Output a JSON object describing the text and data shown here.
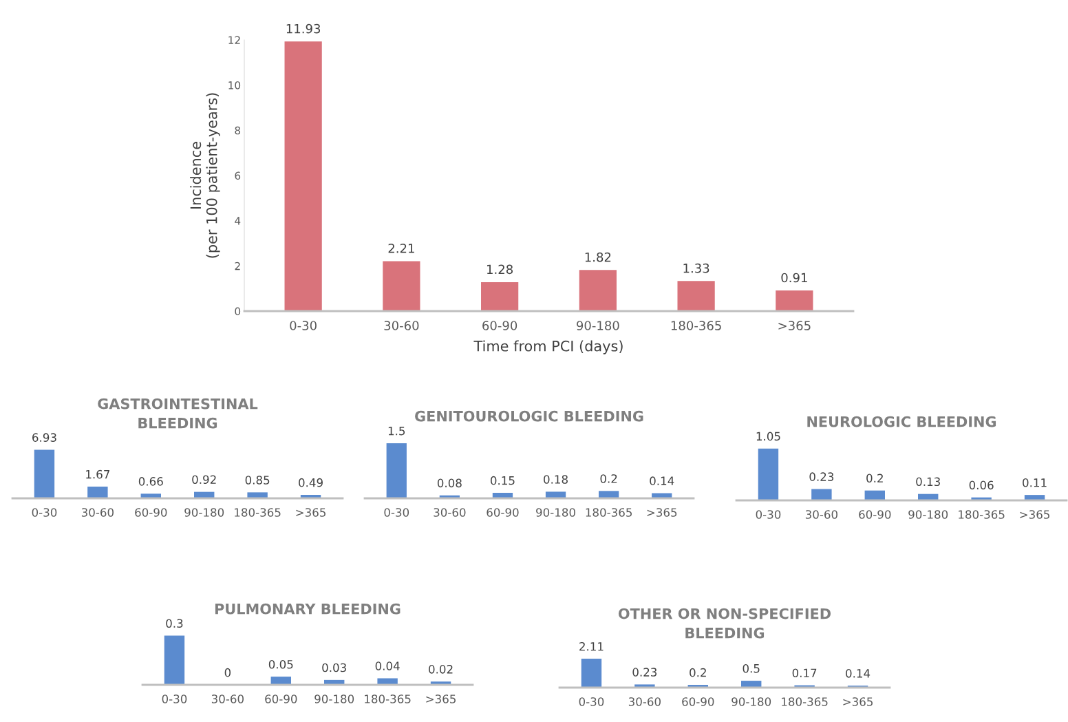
{
  "chart_data": [
    {
      "type": "bar",
      "xlabel": "Time from PCI (days)",
      "ylabel": "Incidence\n(per 100 patient-years)",
      "categories": [
        "0-30",
        "30-60",
        "60-90",
        "90-180",
        "180-365",
        ">365"
      ],
      "values": [
        11.93,
        2.21,
        1.28,
        1.82,
        1.33,
        0.91
      ],
      "color": "#d9737b",
      "ylim": [
        0,
        12
      ],
      "yticks": [
        0,
        2,
        4,
        6,
        8,
        10,
        12
      ],
      "data_labels": true,
      "grid": false
    },
    {
      "type": "bar",
      "title": "GASTROINTESTINAL\nBLEEDING",
      "categories": [
        "0-30",
        "30-60",
        "60-90",
        "90-180",
        "180-365",
        ">365"
      ],
      "values": [
        6.93,
        1.67,
        0.66,
        0.92,
        0.85,
        0.49
      ],
      "color": "#5b8bcf",
      "data_labels": true,
      "grid": false,
      "tick_labels": "x"
    },
    {
      "type": "bar",
      "title": "GENITOUROLOGIC BLEEDING",
      "categories": [
        "0-30",
        "30-60",
        "60-90",
        "90-180",
        "180-365",
        ">365"
      ],
      "values": [
        1.5,
        0.08,
        0.15,
        0.18,
        0.2,
        0.14
      ],
      "color": "#5b8bcf",
      "data_labels": true,
      "grid": false,
      "tick_labels": "x"
    },
    {
      "type": "bar",
      "title": "NEUROLOGIC BLEEDING",
      "categories": [
        "0-30",
        "30-60",
        "60-90",
        "90-180",
        "180-365",
        ">365"
      ],
      "values": [
        1.05,
        0.23,
        0.2,
        0.13,
        0.06,
        0.11
      ],
      "color": "#5b8bcf",
      "data_labels": true,
      "grid": false,
      "tick_labels": "x"
    },
    {
      "type": "bar",
      "title": "PULMONARY BLEEDING",
      "categories": [
        "0-30",
        "30-60",
        "60-90",
        "90-180",
        "180-365",
        ">365"
      ],
      "values": [
        0.3,
        0,
        0.05,
        0.03,
        0.04,
        0.02
      ],
      "color": "#5b8bcf",
      "data_labels": true,
      "grid": false,
      "tick_labels": "x"
    },
    {
      "type": "bar",
      "title": "OTHER OR NON-SPECIFIED\nBLEEDING",
      "categories": [
        "0-30",
        "30-60",
        "60-90",
        "90-180",
        "180-365",
        ">365"
      ],
      "values": [
        2.11,
        0.23,
        0.2,
        0.5,
        0.17,
        0.14
      ],
      "color": "#5b8bcf",
      "data_labels": true,
      "grid": false,
      "tick_labels": "x"
    }
  ]
}
